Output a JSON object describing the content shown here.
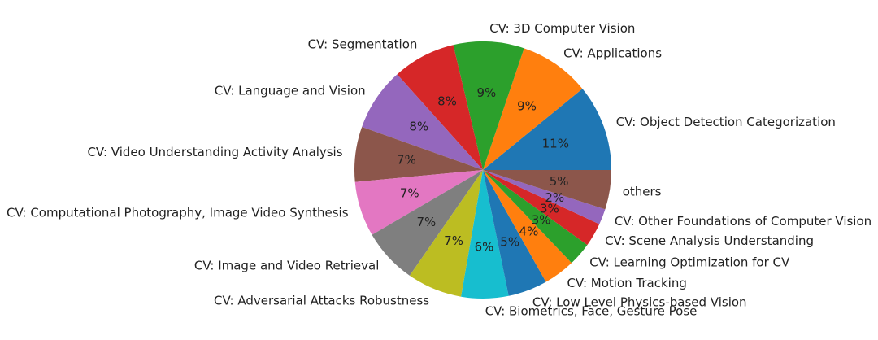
{
  "chart_data": {
    "type": "pie",
    "categories": [
      "CV: Object Detection Categorization",
      "CV: Applications",
      "CV: 3D Computer Vision",
      "CV: Segmentation",
      "CV: Language and Vision",
      "CV: Video Understanding Activity Analysis",
      "CV: Computational Photography, Image Video Synthesis",
      "CV: Image and Video Retrieval",
      "CV: Adversarial Attacks Robustness",
      "CV: Biometrics, Face, Gesture Pose",
      "CV: Low Level Physics-based Vision",
      "CV: Motion Tracking",
      "CV: Learning Optimization for CV",
      "CV: Scene Analysis Understanding",
      "CV: Other Foundations of Computer Vision",
      "others"
    ],
    "values": [
      11,
      9,
      9,
      8,
      8,
      7,
      7,
      7,
      7,
      6,
      5,
      4,
      3,
      3,
      2,
      5
    ],
    "value_labels": [
      "11%",
      "9%",
      "9%",
      "8%",
      "8%",
      "7%",
      "7%",
      "7%",
      "7%",
      "6%",
      "5%",
      "4%",
      "3%",
      "3%",
      "2%",
      "5%"
    ],
    "colors": [
      "#1f77b4",
      "#ff7f0e",
      "#2ca02c",
      "#d62728",
      "#9467bd",
      "#8c564b",
      "#e377c2",
      "#7f7f7f",
      "#bcbd22",
      "#17becf",
      "#1f77b4",
      "#ff7f0e",
      "#2ca02c",
      "#d62728",
      "#9467bd",
      "#8c564b"
    ]
  }
}
